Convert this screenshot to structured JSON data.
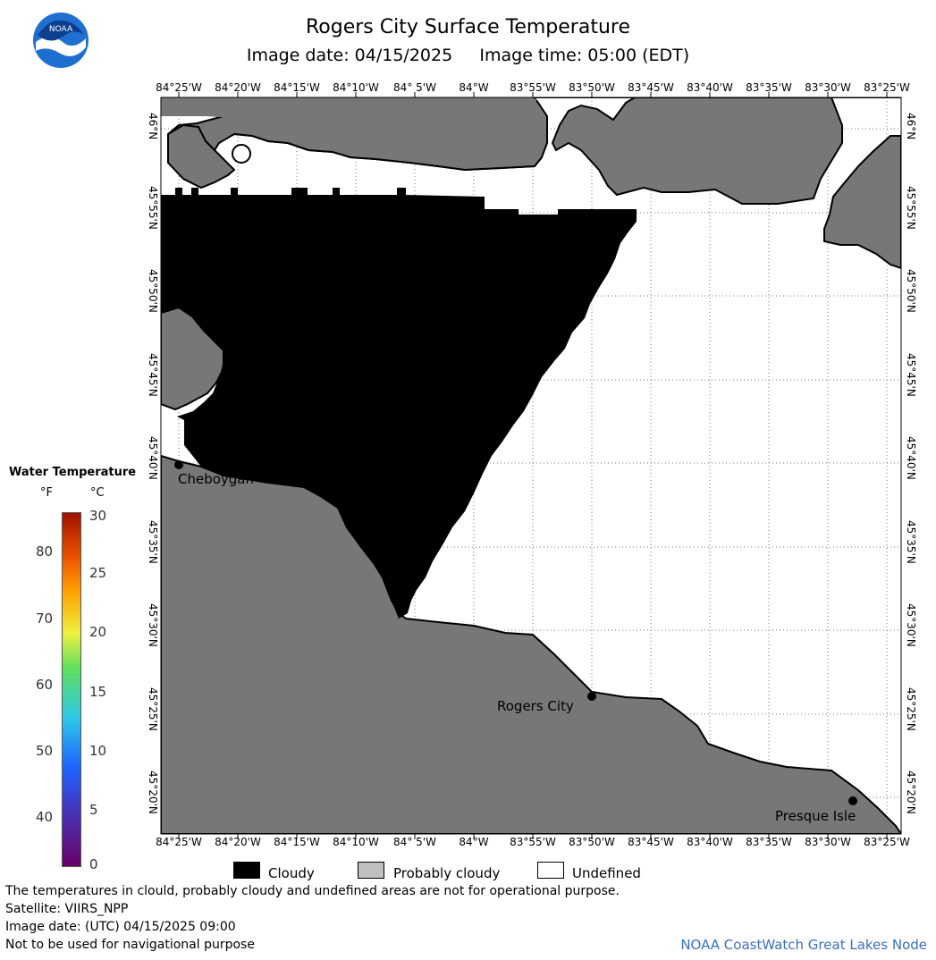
{
  "header": {
    "title": "Rogers City Surface Temperature",
    "subtitle": "Image date: 04/15/2025     Image time: 05:00 (EDT)"
  },
  "logo": {
    "text": "NOAA",
    "icon": "noaa-logo-icon"
  },
  "axes": {
    "lon_labels": [
      "84°25'W",
      "84°20'W",
      "84°15'W",
      "84°10'W",
      "84° 5'W",
      "84°W",
      "83°55'W",
      "83°50'W",
      "83°45'W",
      "83°40'W",
      "83°35'W",
      "83°30'W",
      "83°25'W"
    ],
    "lat_labels": [
      "46°N",
      "45°55'N",
      "45°50'N",
      "45°45'N",
      "45°40'N",
      "45°35'N",
      "45°30'N",
      "45°25'N",
      "45°20'N"
    ]
  },
  "places": [
    {
      "name": "Cheboygan"
    },
    {
      "name": "Rogers City"
    },
    {
      "name": "Presque Isle"
    }
  ],
  "legend": {
    "title": "Water Temperature",
    "unit_f": "°F",
    "unit_c": "°C",
    "ticks_f": [
      "80",
      "70",
      "60",
      "50",
      "40"
    ],
    "ticks_c": [
      "30",
      "25",
      "20",
      "15",
      "10",
      "5",
      "0"
    ]
  },
  "key": [
    {
      "label": "Cloudy",
      "color": "#000000"
    },
    {
      "label": "Probably cloudy",
      "color": "#c0c0c0"
    },
    {
      "label": "Undefined",
      "color": "#ffffff"
    }
  ],
  "colors": {
    "land": "#777777",
    "cloud": "#000000",
    "water_undefined": "#ffffff",
    "credit": "#3a6fc4"
  },
  "notes": {
    "disclaimer": "The temperatures in clould, probably cloudy and undefined areas are not for operational purpose.",
    "satellite": "Satellite: VIIRS_NPP",
    "utc_date": "Image date: (UTC) 04/15/2025  09:00",
    "nav": "Not to be used for navigational purpose"
  },
  "credit": "NOAA CoastWatch Great Lakes Node"
}
